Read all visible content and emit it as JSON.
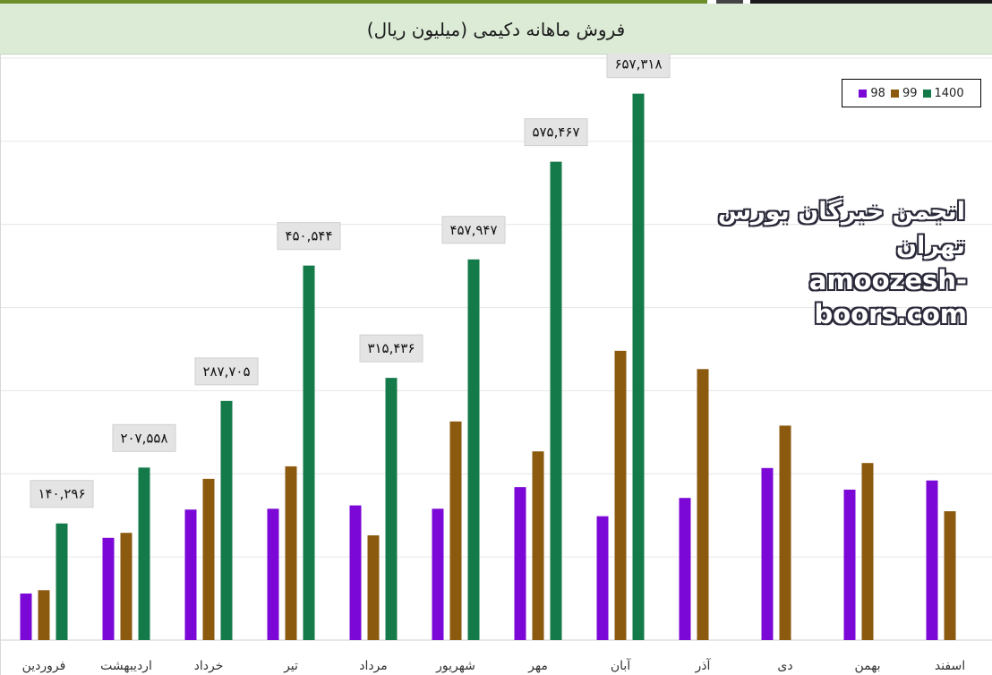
{
  "colors": {
    "s98": "#7b08d6",
    "s99": "#8b5a0f",
    "s1400": "#157a4a"
  },
  "chart_data": {
    "type": "bar",
    "title": "فروش ماهانه دکیمی (میلیون ریال)",
    "categories": [
      "فروردین",
      "اردیبهشت",
      "خرداد",
      "تیر",
      "مرداد",
      "شهریور",
      "مهر",
      "آبان",
      "آذر",
      "دی",
      "بهمن",
      "اسفند"
    ],
    "series": [
      {
        "name": "98",
        "color": "#7b08d6",
        "values": [
          56000,
          123000,
          157000,
          158000,
          162000,
          158000,
          184000,
          149000,
          171000,
          207000,
          181000,
          192000
        ]
      },
      {
        "name": "99",
        "color": "#8b5a0f",
        "values": [
          60000,
          129000,
          194000,
          209000,
          126000,
          263000,
          227000,
          348000,
          326000,
          258000,
          213000,
          155000
        ]
      },
      {
        "name": "1400",
        "color": "#157a4a",
        "values": [
          140296,
          207558,
          287705,
          450544,
          315436,
          457947,
          575467,
          657318,
          null,
          null,
          null,
          null
        ]
      }
    ],
    "data_labels": [
      "۱۴۰,۲۹۶",
      "۲۰۷,۵۵۸",
      "۲۸۷,۷۰۵",
      "۴۵۰,۵۴۴",
      "۳۱۵,۴۳۶",
      "۴۵۷,۹۴۷",
      "۵۷۵,۴۶۷",
      "۶۵۷,۳۱۸"
    ],
    "ylim": [
      0,
      700000
    ],
    "grid": true,
    "legend": "top-right",
    "xlabel": "",
    "ylabel": ""
  },
  "watermark": {
    "fa": "انجمن خبرگان بورس تهران",
    "url": "amoozesh-boors.com"
  }
}
